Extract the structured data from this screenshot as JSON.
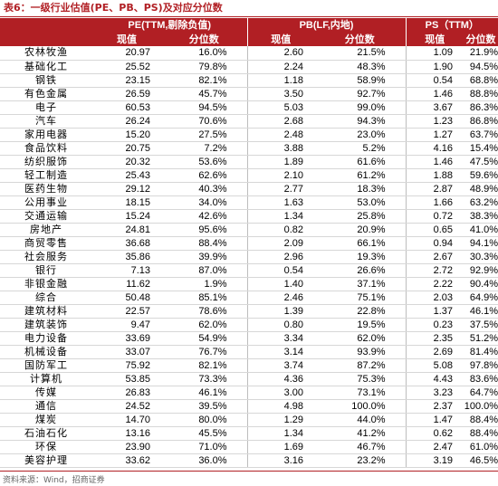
{
  "title": "表6：一级行业估值(PE、PB、PS)及对应分位数",
  "headers": {
    "group_pe": "PE(TTM,剔除负值)",
    "group_pb": "PB(LF,内地)",
    "group_ps": "PS（TTM）",
    "current": "现值",
    "percentile": "分位数"
  },
  "rows": [
    {
      "industry": "农林牧渔",
      "pe": "20.97",
      "pe_pct": "16.0%",
      "pb": "2.60",
      "pb_pct": "21.5%",
      "ps": "1.09",
      "ps_pct": "21.9%"
    },
    {
      "industry": "基础化工",
      "pe": "25.52",
      "pe_pct": "79.8%",
      "pb": "2.24",
      "pb_pct": "48.3%",
      "ps": "1.90",
      "ps_pct": "94.5%"
    },
    {
      "industry": "钢铁",
      "pe": "23.15",
      "pe_pct": "82.1%",
      "pb": "1.18",
      "pb_pct": "58.9%",
      "ps": "0.54",
      "ps_pct": "68.8%"
    },
    {
      "industry": "有色金属",
      "pe": "26.59",
      "pe_pct": "45.7%",
      "pb": "3.50",
      "pb_pct": "92.7%",
      "ps": "1.46",
      "ps_pct": "88.8%"
    },
    {
      "industry": "电子",
      "pe": "60.53",
      "pe_pct": "94.5%",
      "pb": "5.03",
      "pb_pct": "99.0%",
      "ps": "3.67",
      "ps_pct": "86.3%"
    },
    {
      "industry": "汽车",
      "pe": "26.24",
      "pe_pct": "70.6%",
      "pb": "2.68",
      "pb_pct": "94.3%",
      "ps": "1.23",
      "ps_pct": "86.8%"
    },
    {
      "industry": "家用电器",
      "pe": "15.20",
      "pe_pct": "27.5%",
      "pb": "2.48",
      "pb_pct": "23.0%",
      "ps": "1.27",
      "ps_pct": "63.7%"
    },
    {
      "industry": "食品饮料",
      "pe": "20.75",
      "pe_pct": "7.2%",
      "pb": "3.88",
      "pb_pct": "5.2%",
      "ps": "4.16",
      "ps_pct": "15.4%"
    },
    {
      "industry": "纺织服饰",
      "pe": "20.32",
      "pe_pct": "53.6%",
      "pb": "1.89",
      "pb_pct": "61.6%",
      "ps": "1.46",
      "ps_pct": "47.5%"
    },
    {
      "industry": "轻工制造",
      "pe": "25.43",
      "pe_pct": "62.6%",
      "pb": "2.10",
      "pb_pct": "61.2%",
      "ps": "1.88",
      "ps_pct": "59.6%"
    },
    {
      "industry": "医药生物",
      "pe": "29.12",
      "pe_pct": "40.3%",
      "pb": "2.77",
      "pb_pct": "18.3%",
      "ps": "2.87",
      "ps_pct": "48.9%"
    },
    {
      "industry": "公用事业",
      "pe": "18.15",
      "pe_pct": "34.0%",
      "pb": "1.63",
      "pb_pct": "53.0%",
      "ps": "1.66",
      "ps_pct": "63.2%"
    },
    {
      "industry": "交通运输",
      "pe": "15.24",
      "pe_pct": "42.6%",
      "pb": "1.34",
      "pb_pct": "25.8%",
      "ps": "0.72",
      "ps_pct": "38.3%"
    },
    {
      "industry": "房地产",
      "pe": "24.81",
      "pe_pct": "95.6%",
      "pb": "0.82",
      "pb_pct": "20.9%",
      "ps": "0.65",
      "ps_pct": "41.0%"
    },
    {
      "industry": "商贸零售",
      "pe": "36.68",
      "pe_pct": "88.4%",
      "pb": "2.09",
      "pb_pct": "66.1%",
      "ps": "0.94",
      "ps_pct": "94.1%"
    },
    {
      "industry": "社会服务",
      "pe": "35.86",
      "pe_pct": "39.9%",
      "pb": "2.96",
      "pb_pct": "19.3%",
      "ps": "2.67",
      "ps_pct": "30.3%"
    },
    {
      "industry": "银行",
      "pe": "7.13",
      "pe_pct": "87.0%",
      "pb": "0.54",
      "pb_pct": "26.6%",
      "ps": "2.72",
      "ps_pct": "92.9%"
    },
    {
      "industry": "非银金融",
      "pe": "11.62",
      "pe_pct": "1.9%",
      "pb": "1.40",
      "pb_pct": "37.1%",
      "ps": "2.22",
      "ps_pct": "90.4%"
    },
    {
      "industry": "综合",
      "pe": "50.48",
      "pe_pct": "85.1%",
      "pb": "2.46",
      "pb_pct": "75.1%",
      "ps": "2.03",
      "ps_pct": "64.9%"
    },
    {
      "industry": "建筑材料",
      "pe": "22.57",
      "pe_pct": "78.6%",
      "pb": "1.39",
      "pb_pct": "22.8%",
      "ps": "1.37",
      "ps_pct": "46.1%"
    },
    {
      "industry": "建筑装饰",
      "pe": "9.47",
      "pe_pct": "62.0%",
      "pb": "0.80",
      "pb_pct": "19.5%",
      "ps": "0.23",
      "ps_pct": "37.5%"
    },
    {
      "industry": "电力设备",
      "pe": "33.69",
      "pe_pct": "54.9%",
      "pb": "3.34",
      "pb_pct": "62.0%",
      "ps": "2.35",
      "ps_pct": "51.2%"
    },
    {
      "industry": "机械设备",
      "pe": "33.07",
      "pe_pct": "76.7%",
      "pb": "3.14",
      "pb_pct": "93.9%",
      "ps": "2.69",
      "ps_pct": "81.4%"
    },
    {
      "industry": "国防军工",
      "pe": "75.92",
      "pe_pct": "82.1%",
      "pb": "3.74",
      "pb_pct": "87.2%",
      "ps": "5.08",
      "ps_pct": "97.8%"
    },
    {
      "industry": "计算机",
      "pe": "53.85",
      "pe_pct": "73.3%",
      "pb": "4.36",
      "pb_pct": "75.3%",
      "ps": "4.43",
      "ps_pct": "83.6%"
    },
    {
      "industry": "传媒",
      "pe": "26.83",
      "pe_pct": "46.1%",
      "pb": "3.00",
      "pb_pct": "73.1%",
      "ps": "3.23",
      "ps_pct": "64.7%"
    },
    {
      "industry": "通信",
      "pe": "24.52",
      "pe_pct": "39.5%",
      "pb": "4.98",
      "pb_pct": "100.0%",
      "ps": "2.37",
      "ps_pct": "100.0%"
    },
    {
      "industry": "煤炭",
      "pe": "14.70",
      "pe_pct": "80.0%",
      "pb": "1.29",
      "pb_pct": "44.0%",
      "ps": "1.47",
      "ps_pct": "88.4%"
    },
    {
      "industry": "石油石化",
      "pe": "13.16",
      "pe_pct": "45.5%",
      "pb": "1.34",
      "pb_pct": "41.2%",
      "ps": "0.62",
      "ps_pct": "88.4%"
    },
    {
      "industry": "环保",
      "pe": "23.90",
      "pe_pct": "71.0%",
      "pb": "1.69",
      "pb_pct": "46.7%",
      "ps": "2.47",
      "ps_pct": "61.0%"
    },
    {
      "industry": "美容护理",
      "pe": "33.62",
      "pe_pct": "36.0%",
      "pb": "3.16",
      "pb_pct": "23.2%",
      "ps": "3.19",
      "ps_pct": "46.5%"
    }
  ],
  "source": "资料来源：Wind，招商证券",
  "colors": {
    "accent": "#b11f24",
    "row_rule": "#d7d7d7"
  }
}
